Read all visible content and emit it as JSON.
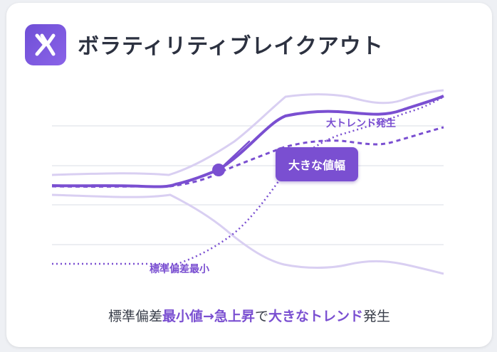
{
  "title": "ボラティリティブレイクアウト",
  "app_icon": "volatility-logo-icon",
  "colors": {
    "accent": "#7a4fd1",
    "band": "#d9cff2",
    "grid": "#e6e8ee"
  },
  "annotations": {
    "big_range": "大きな値幅",
    "big_trend": "大トレンド発生",
    "min_std": "標準偏差最小"
  },
  "caption": {
    "part1": "標準偏差",
    "part2": "最小値→急上昇",
    "part3": "で",
    "part4": "大きなトレンド",
    "part5": "発生"
  }
}
